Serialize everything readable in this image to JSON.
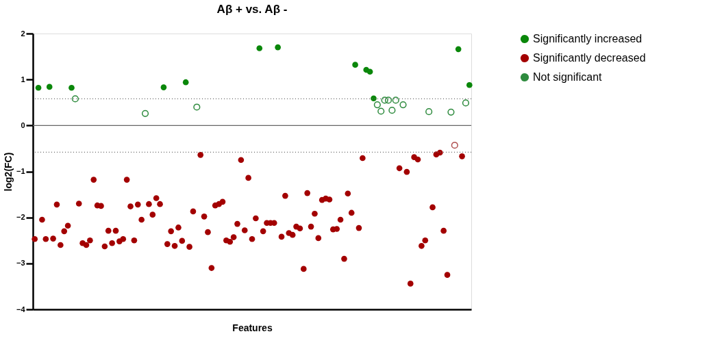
{
  "chart_data": {
    "type": "scatter",
    "title": "Aβ + vs. Aβ -",
    "xlabel": "Features",
    "ylabel": "log2(FC)",
    "categories": [
      null,
      null,
      null,
      null,
      null,
      null,
      null,
      null,
      null,
      null,
      null,
      null,
      null,
      null,
      null,
      null,
      null,
      null,
      null,
      null,
      null,
      null,
      null,
      null,
      null,
      null,
      null,
      null,
      null,
      null,
      null,
      null,
      null,
      null,
      null,
      null,
      null,
      null,
      null,
      null,
      null,
      null,
      null,
      null,
      null,
      null,
      null,
      null,
      null,
      null,
      null,
      null,
      null,
      null,
      null,
      null,
      null,
      null,
      null,
      null,
      null,
      null,
      null,
      null,
      null,
      null,
      null,
      null,
      null,
      null,
      null,
      null,
      null,
      null,
      null,
      null,
      null,
      null,
      null,
      null,
      null,
      null,
      null,
      null,
      null,
      null,
      null,
      null,
      null,
      null,
      null,
      null,
      null,
      null,
      null,
      null,
      null,
      null,
      null,
      null,
      null,
      null,
      null,
      null,
      null,
      null,
      null,
      null,
      null,
      null,
      null,
      null,
      null,
      null,
      null,
      null,
      null,
      null,
      null
    ],
    "ylim": [
      -4,
      2
    ],
    "yticks": [
      -4,
      -3,
      -2,
      -1,
      0,
      1,
      2
    ],
    "grid": false,
    "legend": "right",
    "marker": "circle",
    "ref_lines": [
      {
        "axis": "y",
        "value": 0,
        "color": "#666666",
        "line_style": "solid"
      },
      {
        "axis": "y",
        "value": 0.58,
        "color": "#666666",
        "line_style": "dotted"
      },
      {
        "axis": "y",
        "value": -0.58,
        "color": "#666666",
        "line_style": "dotted"
      }
    ],
    "series": [
      {
        "name": "Significantly increased",
        "color": "#0a870a",
        "values": [
          null,
          0.82,
          null,
          null,
          0.84,
          null,
          null,
          null,
          null,
          null,
          0.82,
          null,
          null,
          null,
          null,
          null,
          null,
          null,
          null,
          null,
          null,
          null,
          null,
          null,
          null,
          null,
          null,
          null,
          null,
          null,
          null,
          null,
          null,
          null,
          null,
          0.83,
          null,
          null,
          null,
          null,
          null,
          0.94,
          null,
          null,
          null,
          null,
          null,
          null,
          null,
          null,
          null,
          null,
          null,
          null,
          null,
          null,
          null,
          null,
          null,
          null,
          null,
          1.68,
          null,
          null,
          null,
          null,
          1.7,
          null,
          null,
          null,
          null,
          null,
          null,
          null,
          null,
          null,
          null,
          null,
          null,
          null,
          null,
          null,
          null,
          null,
          null,
          null,
          null,
          1.32,
          null,
          null,
          1.21,
          1.17,
          0.59,
          null,
          null,
          null,
          null,
          null,
          null,
          null,
          null,
          null,
          null,
          null,
          null,
          null,
          null,
          null,
          null,
          null,
          null,
          null,
          null,
          null,
          null,
          1.66,
          null,
          null,
          0.88
        ]
      },
      {
        "name": "Significantly decreased",
        "color": "#a30000",
        "values": [
          -2.47,
          null,
          -2.05,
          -2.47,
          null,
          -2.46,
          -1.72,
          -2.6,
          -2.3,
          -2.18,
          null,
          null,
          -1.7,
          -2.56,
          -2.6,
          -2.5,
          -1.18,
          -1.74,
          -1.75,
          -2.63,
          -2.29,
          -2.56,
          -2.29,
          -2.52,
          -2.47,
          -1.18,
          -1.76,
          -2.5,
          -1.72,
          -2.05,
          null,
          -1.71,
          -1.94,
          -1.58,
          -1.71,
          null,
          -2.58,
          -2.3,
          -2.62,
          -2.22,
          -2.51,
          null,
          -2.64,
          -1.87,
          null,
          -0.64,
          -1.98,
          -2.32,
          -3.1,
          -1.74,
          -1.71,
          -1.66,
          -2.5,
          -2.53,
          -2.43,
          -2.14,
          -0.75,
          -2.28,
          -1.14,
          -2.47,
          -2.02,
          null,
          -2.3,
          -2.12,
          -2.12,
          -2.12,
          null,
          -2.42,
          -1.53,
          -2.34,
          -2.38,
          -2.2,
          -2.24,
          -3.12,
          -1.47,
          -2.2,
          -1.92,
          -2.45,
          -1.62,
          -1.59,
          -1.61,
          -2.26,
          -2.25,
          -2.05,
          -2.9,
          -1.48,
          -1.9,
          null,
          -2.23,
          -0.71,
          null,
          null,
          null,
          null,
          null,
          null,
          null,
          null,
          null,
          -0.93,
          null,
          -1.01,
          -3.44,
          -0.69,
          -0.74,
          -2.62,
          -2.5,
          null,
          -1.78,
          -0.63,
          -0.59,
          -2.29,
          -3.25,
          null,
          null,
          null,
          -0.67,
          null,
          null
        ]
      },
      {
        "name": "Not significant",
        "color": "#2e8b3e",
        "values": [
          null,
          null,
          null,
          null,
          null,
          null,
          null,
          null,
          null,
          null,
          null,
          0.58,
          null,
          null,
          null,
          null,
          null,
          null,
          null,
          null,
          null,
          null,
          null,
          null,
          null,
          null,
          null,
          null,
          null,
          null,
          0.26,
          null,
          null,
          null,
          null,
          null,
          null,
          null,
          null,
          null,
          null,
          null,
          null,
          null,
          0.4,
          null,
          null,
          null,
          null,
          null,
          null,
          null,
          null,
          null,
          null,
          null,
          null,
          null,
          null,
          null,
          null,
          null,
          null,
          null,
          null,
          null,
          null,
          null,
          null,
          null,
          null,
          null,
          null,
          null,
          null,
          null,
          null,
          null,
          null,
          null,
          null,
          null,
          null,
          null,
          null,
          null,
          null,
          null,
          null,
          null,
          null,
          null,
          null,
          0.45,
          0.31,
          0.55,
          0.55,
          0.33,
          0.55,
          null,
          0.45,
          null,
          null,
          null,
          null,
          null,
          null,
          0.3,
          null,
          null,
          null,
          null,
          null,
          0.29,
          -0.43,
          null,
          null,
          0.49,
          null
        ],
        "colors": [
          null,
          null,
          null,
          null,
          null,
          null,
          null,
          null,
          null,
          null,
          null,
          "#2e8b3e",
          null,
          null,
          null,
          null,
          null,
          null,
          null,
          null,
          null,
          null,
          null,
          null,
          null,
          null,
          null,
          null,
          null,
          null,
          "#2e8b3e",
          null,
          null,
          null,
          null,
          null,
          null,
          null,
          null,
          null,
          null,
          null,
          null,
          null,
          "#2e8b3e",
          null,
          null,
          null,
          null,
          null,
          null,
          null,
          null,
          null,
          null,
          null,
          null,
          null,
          null,
          null,
          null,
          null,
          null,
          null,
          null,
          null,
          null,
          null,
          null,
          null,
          null,
          null,
          null,
          null,
          null,
          null,
          null,
          null,
          null,
          null,
          null,
          null,
          null,
          null,
          null,
          null,
          null,
          null,
          null,
          null,
          null,
          null,
          null,
          "#2e8b3e",
          "#2e8b3e",
          "#2e8b3e",
          "#2e8b3e",
          "#2e8b3e",
          "#2e8b3e",
          null,
          "#2e8b3e",
          null,
          null,
          null,
          null,
          null,
          null,
          "#2e8b3e",
          null,
          null,
          null,
          null,
          null,
          "#2e8b3e",
          "#b05050",
          null,
          null,
          "#2e8b3e",
          null
        ]
      }
    ]
  }
}
